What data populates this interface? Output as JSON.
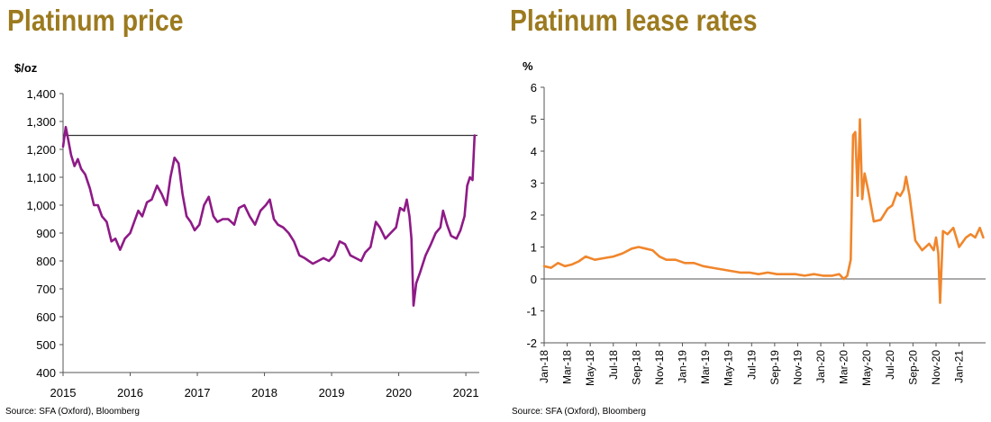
{
  "chart_data": [
    {
      "type": "line",
      "title": "Platinum price",
      "ylabel": "$/oz",
      "source": "Source: SFA (Oxford), Bloomberg",
      "color": "#8e1a87",
      "reference_line": {
        "y": 1250,
        "color": "#333333"
      },
      "ylim": [
        400,
        1400
      ],
      "yticks": [
        "1,400",
        "1,300",
        "1,200",
        "1,100",
        "1,000",
        "900",
        "800",
        "700",
        "600",
        "500",
        "400"
      ],
      "ytick_values": [
        1400,
        1300,
        1200,
        1100,
        1000,
        900,
        800,
        700,
        600,
        500,
        400
      ],
      "xlim": [
        2015.0,
        2021.2
      ],
      "xticks": [
        "2015",
        "2016",
        "2017",
        "2018",
        "2019",
        "2020",
        "2021"
      ],
      "xtick_values": [
        2015,
        2016,
        2017,
        2018,
        2019,
        2020,
        2021
      ],
      "series": [
        {
          "x": [
            2015.0,
            2015.04,
            2015.08,
            2015.12,
            2015.17,
            2015.22,
            2015.27,
            2015.33,
            2015.4,
            2015.46,
            2015.52,
            2015.58,
            2015.65,
            2015.72,
            2015.78,
            2015.85,
            2015.92,
            2016.0,
            2016.06,
            2016.12,
            2016.18,
            2016.25,
            2016.32,
            2016.4,
            2016.47,
            2016.54,
            2016.6,
            2016.66,
            2016.72,
            2016.78,
            2016.84,
            2016.9,
            2016.96,
            2017.03,
            2017.1,
            2017.17,
            2017.24,
            2017.3,
            2017.38,
            2017.46,
            2017.55,
            2017.62,
            2017.7,
            2017.78,
            2017.86,
            2017.94,
            2018.02,
            2018.08,
            2018.14,
            2018.2,
            2018.28,
            2018.36,
            2018.44,
            2018.52,
            2018.6,
            2018.66,
            2018.72,
            2018.8,
            2018.88,
            2018.96,
            2019.04,
            2019.12,
            2019.2,
            2019.28,
            2019.36,
            2019.44,
            2019.5,
            2019.58,
            2019.66,
            2019.72,
            2019.8,
            2019.88,
            2019.96,
            2020.02,
            2020.08,
            2020.12,
            2020.16,
            2020.19,
            2020.22,
            2020.26,
            2020.32,
            2020.4,
            2020.48,
            2020.55,
            2020.62,
            2020.66,
            2020.72,
            2020.78,
            2020.86,
            2020.92,
            2020.98,
            2021.02,
            2021.06,
            2021.1,
            2021.13
          ],
          "y": [
            1210,
            1280,
            1230,
            1180,
            1140,
            1165,
            1130,
            1110,
            1060,
            1000,
            1000,
            960,
            940,
            870,
            880,
            840,
            880,
            900,
            940,
            980,
            960,
            1010,
            1020,
            1070,
            1040,
            1000,
            1100,
            1170,
            1150,
            1040,
            960,
            940,
            910,
            930,
            1000,
            1030,
            960,
            940,
            950,
            950,
            930,
            990,
            1000,
            960,
            930,
            980,
            1000,
            1020,
            950,
            930,
            920,
            900,
            870,
            820,
            810,
            800,
            790,
            800,
            810,
            800,
            820,
            870,
            860,
            820,
            810,
            800,
            830,
            850,
            940,
            920,
            880,
            900,
            920,
            990,
            980,
            1020,
            960,
            880,
            640,
            720,
            760,
            820,
            860,
            900,
            920,
            980,
            930,
            890,
            880,
            910,
            960,
            1070,
            1100,
            1090,
            1250
          ]
        }
      ]
    },
    {
      "type": "line",
      "title": "Platinum lease rates",
      "ylabel": "%",
      "source": "Source: SFA (Oxford), Bloomberg",
      "color": "#f0862c",
      "ylim": [
        -2,
        6
      ],
      "yticks": [
        "6",
        "5",
        "4",
        "3",
        "2",
        "1",
        "0",
        "-1",
        "-2"
      ],
      "ytick_values": [
        6,
        5,
        4,
        3,
        2,
        1,
        0,
        -1,
        -2
      ],
      "xlim": [
        0,
        38.3
      ],
      "xticks": [
        "Jan-18",
        "Mar-18",
        "May-18",
        "Jul-18",
        "Sep-18",
        "Nov-18",
        "Jan-19",
        "Mar-19",
        "May-19",
        "Jul-19",
        "Sep-19",
        "Nov-19",
        "Jan-20",
        "Mar-20",
        "May-20",
        "Jul-20",
        "Sep-20",
        "Nov-20",
        "Jan-21"
      ],
      "xtick_values": [
        0,
        2,
        4,
        6,
        8,
        10,
        12,
        14,
        16,
        18,
        20,
        22,
        24,
        26,
        28,
        30,
        32,
        34,
        36
      ],
      "series": [
        {
          "x": [
            0,
            0.6,
            1.2,
            1.8,
            2.4,
            3.0,
            3.6,
            4.4,
            5.2,
            6.0,
            6.8,
            7.6,
            8.2,
            8.8,
            9.4,
            10.0,
            10.6,
            11.4,
            12.2,
            13.0,
            13.8,
            14.6,
            15.4,
            16.2,
            17.0,
            17.8,
            18.6,
            19.4,
            20.2,
            21.0,
            21.8,
            22.6,
            23.4,
            24.2,
            25.0,
            25.6,
            26.0,
            26.3,
            26.6,
            26.8,
            27.0,
            27.2,
            27.4,
            27.6,
            27.8,
            28.1,
            28.6,
            29.2,
            29.8,
            30.2,
            30.6,
            30.9,
            31.2,
            31.4,
            31.7,
            32.2,
            32.8,
            33.4,
            33.8,
            34.0,
            34.2,
            34.35,
            34.6,
            35.0,
            35.5,
            36.0,
            36.6,
            37.0,
            37.4,
            37.8,
            38.1
          ],
          "y": [
            0.4,
            0.35,
            0.5,
            0.4,
            0.45,
            0.55,
            0.7,
            0.6,
            0.65,
            0.7,
            0.8,
            0.95,
            1.0,
            0.95,
            0.9,
            0.7,
            0.6,
            0.6,
            0.5,
            0.5,
            0.4,
            0.35,
            0.3,
            0.25,
            0.2,
            0.2,
            0.15,
            0.2,
            0.15,
            0.15,
            0.15,
            0.1,
            0.15,
            0.1,
            0.1,
            0.15,
            0.0,
            0.1,
            0.6,
            4.5,
            4.6,
            2.6,
            5.0,
            2.5,
            3.3,
            2.8,
            1.8,
            1.85,
            2.2,
            2.3,
            2.7,
            2.6,
            2.8,
            3.2,
            2.6,
            1.2,
            0.9,
            1.1,
            0.9,
            1.3,
            0.8,
            -0.75,
            1.5,
            1.4,
            1.6,
            1.0,
            1.3,
            1.4,
            1.3,
            1.6,
            1.3
          ]
        }
      ]
    }
  ]
}
